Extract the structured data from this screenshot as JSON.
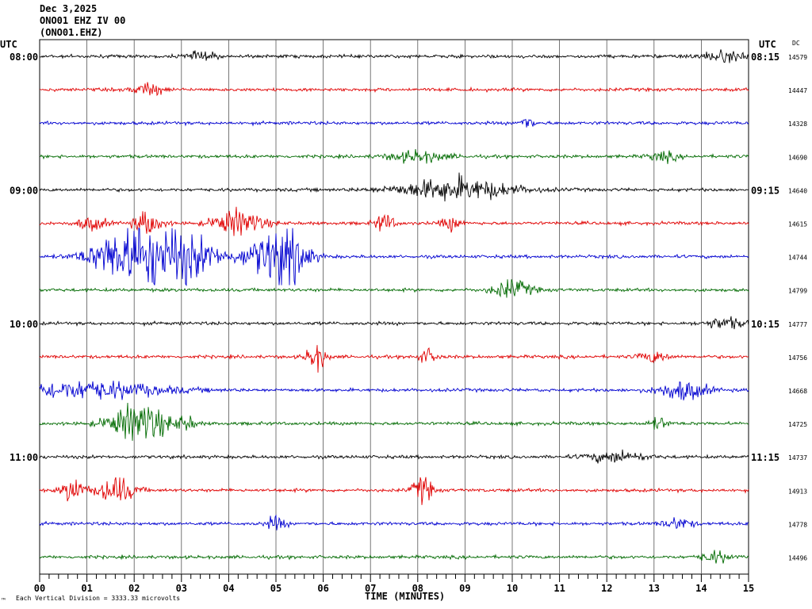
{
  "header": {
    "date": "Dec 3,2025",
    "station": "ONO01 EHZ IV 00",
    "channel": "(ONO01.EHZ)"
  },
  "left_axis_title": "UTC",
  "right_axis_title": "UTC",
  "dc_title": "DC",
  "footer_note": "Each Vertical Division = 3333.33 microvolts",
  "corner_mark": "™",
  "chart_data": {
    "type": "line",
    "xlabel": "TIME (MINUTES)",
    "xlim": [
      0,
      15
    ],
    "x_ticks": [
      "00",
      "01",
      "02",
      "03",
      "04",
      "05",
      "06",
      "07",
      "08",
      "09",
      "10",
      "11",
      "12",
      "13",
      "14",
      "15"
    ],
    "grid": true,
    "left_hour_labels": [
      "08:00",
      "09:00",
      "10:00",
      "11:00"
    ],
    "right_hour_labels": [
      "08:15",
      "09:15",
      "10:15",
      "11:15"
    ],
    "trace_colors": [
      "#000000",
      "#e00000",
      "#0000d0",
      "#006a00"
    ],
    "traces": [
      {
        "dc": "14579",
        "events": [
          [
            3.4,
            0.3,
            4
          ],
          [
            14.5,
            0.6,
            4
          ]
        ]
      },
      {
        "dc": "14447",
        "events": [
          [
            2.3,
            0.3,
            6
          ]
        ]
      },
      {
        "dc": "14328",
        "events": [
          [
            10.3,
            0.15,
            6
          ]
        ]
      },
      {
        "dc": "14690",
        "events": [
          [
            8.0,
            0.6,
            5
          ],
          [
            13.2,
            0.3,
            4
          ]
        ]
      },
      {
        "dc": "14640",
        "events": [
          [
            8.8,
            1.2,
            10
          ]
        ]
      },
      {
        "dc": "14615",
        "events": [
          [
            1.1,
            0.3,
            6
          ],
          [
            2.3,
            0.3,
            10
          ],
          [
            4.2,
            0.5,
            12
          ],
          [
            7.3,
            0.2,
            8
          ],
          [
            8.7,
            0.2,
            6
          ]
        ]
      },
      {
        "dc": "14744",
        "events": [
          [
            2.0,
            0.8,
            30
          ],
          [
            3.1,
            0.7,
            18
          ],
          [
            4.6,
            0.4,
            10
          ],
          [
            5.2,
            0.45,
            28
          ]
        ]
      },
      {
        "dc": "14799",
        "events": [
          [
            10.0,
            0.4,
            8
          ]
        ]
      },
      {
        "dc": "14777",
        "events": [
          [
            14.5,
            0.4,
            5
          ]
        ]
      },
      {
        "dc": "14756",
        "events": [
          [
            5.85,
            0.2,
            12
          ],
          [
            8.2,
            0.2,
            6
          ],
          [
            13.0,
            0.3,
            5
          ]
        ]
      },
      {
        "dc": "14668",
        "events": [
          [
            1.0,
            1.6,
            8
          ],
          [
            13.6,
            0.5,
            9
          ]
        ]
      },
      {
        "dc": "14725",
        "events": [
          [
            2.1,
            0.6,
            18
          ],
          [
            3.1,
            0.2,
            6
          ],
          [
            13.1,
            0.2,
            5
          ]
        ]
      },
      {
        "dc": "14737",
        "events": [
          [
            12.2,
            0.6,
            5
          ]
        ]
      },
      {
        "dc": "14913",
        "events": [
          [
            0.7,
            0.2,
            12
          ],
          [
            1.6,
            0.4,
            12
          ],
          [
            8.1,
            0.2,
            12
          ]
        ]
      },
      {
        "dc": "14778",
        "events": [
          [
            5.0,
            0.2,
            6
          ],
          [
            13.5,
            0.3,
            5
          ]
        ]
      },
      {
        "dc": "14496",
        "events": [
          [
            14.3,
            0.3,
            5
          ]
        ]
      }
    ]
  }
}
